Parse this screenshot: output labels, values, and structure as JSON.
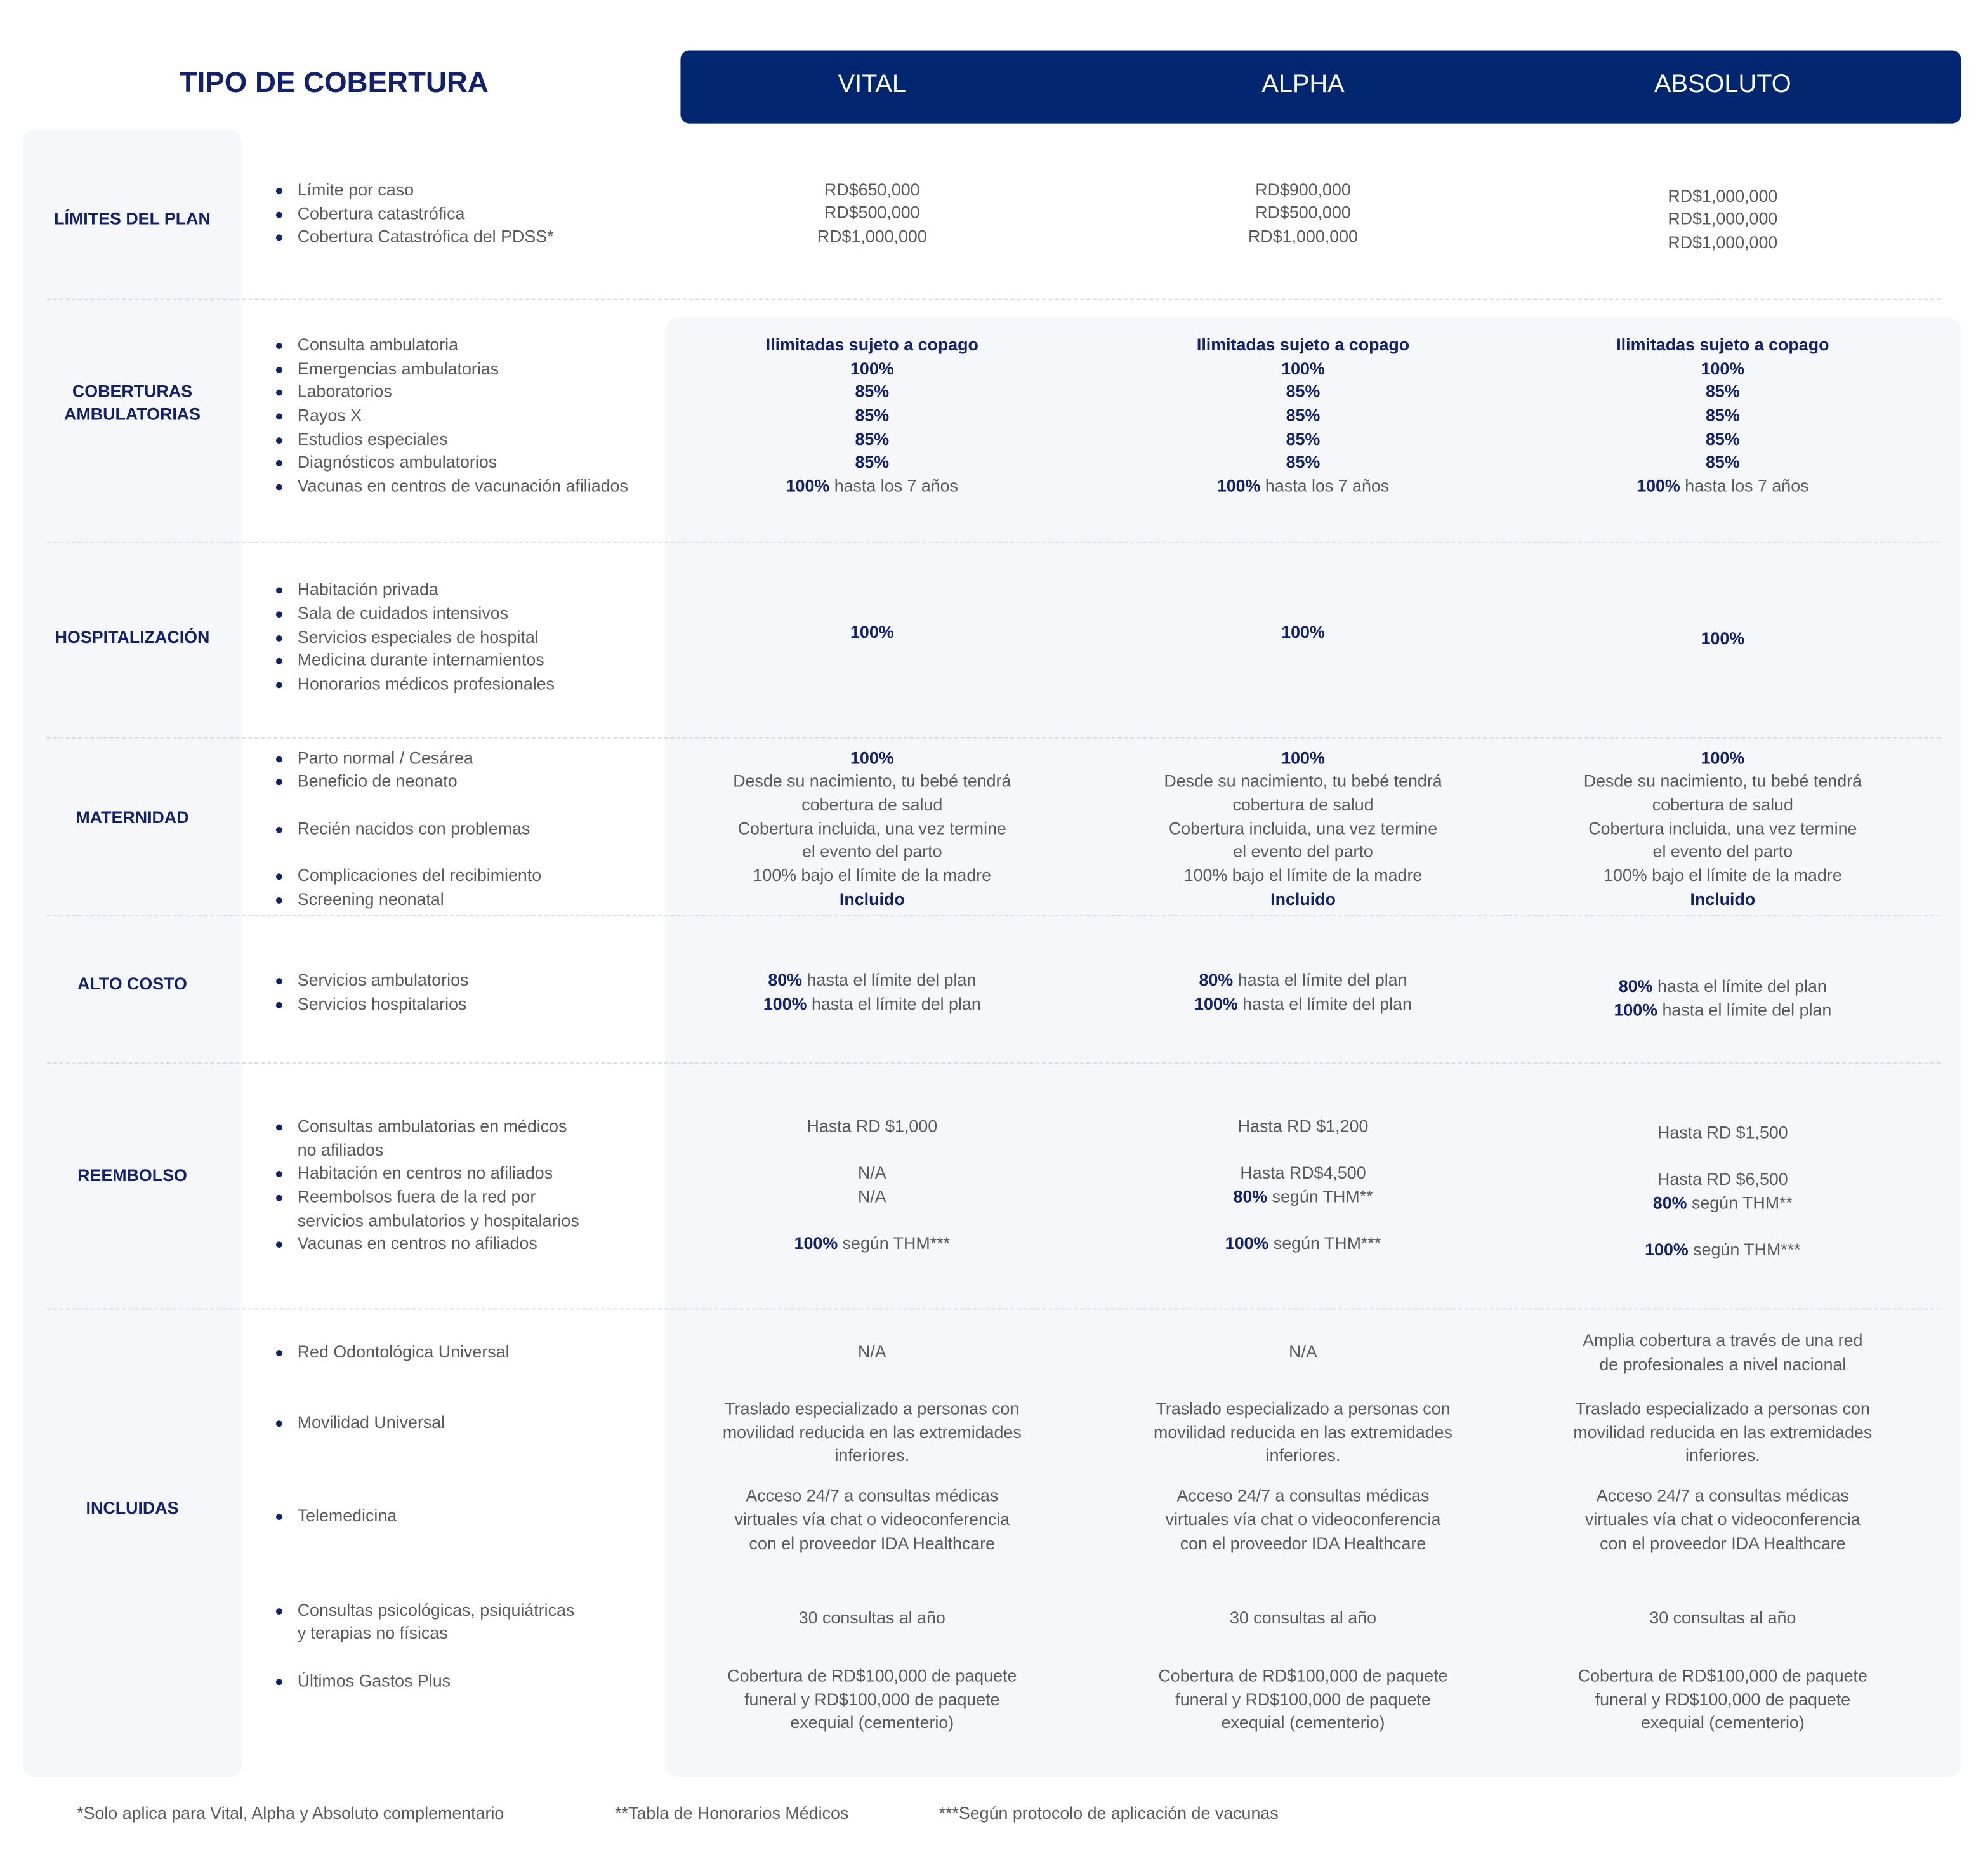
{
  "header": {
    "title": "TIPO DE COBERTURA",
    "plans": [
      "VITAL",
      "ALPHA",
      "ABSOLUTO"
    ]
  },
  "colors": {
    "primary": "#00266f",
    "heading": "#12216b",
    "panel": "#f6f7fb",
    "text": "#5a5a5a"
  },
  "sections": [
    {
      "label": [
        "LÍMITES DEL PLAN"
      ],
      "items": [
        [
          "Límite por caso"
        ],
        [
          "Cobertura catastrófica"
        ],
        [
          "Cobertura Catastrófica del PDSS*"
        ]
      ],
      "values": [
        [
          "RD$650,000",
          "RD$500,000",
          "RD$1,000,000"
        ],
        [
          "RD$900,000",
          "RD$500,000",
          "RD$1,000,000"
        ],
        [
          "RD$1,000,000",
          "RD$1,000,000",
          "RD$1,000,000"
        ]
      ]
    },
    {
      "label": [
        "COBERTURAS",
        "AMBULATORIAS"
      ],
      "items": [
        [
          "Consulta ambulatoria"
        ],
        [
          "Emergencias ambulatorias"
        ],
        [
          "Laboratorios"
        ],
        [
          "Rayos X"
        ],
        [
          "Estudios especiales"
        ],
        [
          "Diagnósticos ambulatorios"
        ],
        [
          "Vacunas en centros de vacunación afiliados"
        ]
      ],
      "values": [
        [
          {
            "bold": "Ilimitadas sujeto a copago"
          },
          {
            "bold": "100%"
          },
          {
            "bold": "85%"
          },
          {
            "bold": "85%"
          },
          {
            "bold": "85%"
          },
          {
            "bold": "85%"
          },
          {
            "bold": "100%",
            "text": "hasta los 7 años"
          }
        ],
        [
          {
            "bold": "Ilimitadas sujeto a copago"
          },
          {
            "bold": "100%"
          },
          {
            "bold": "85%"
          },
          {
            "bold": "85%"
          },
          {
            "bold": "85%"
          },
          {
            "bold": "85%"
          },
          {
            "bold": "100%",
            "text": "hasta los 7 años"
          }
        ],
        [
          {
            "bold": "Ilimitadas sujeto a copago"
          },
          {
            "bold": "100%"
          },
          {
            "bold": "85%"
          },
          {
            "bold": "85%"
          },
          {
            "bold": "85%"
          },
          {
            "bold": "85%"
          },
          {
            "bold": "100%",
            "text": "hasta los 7 años"
          }
        ]
      ]
    },
    {
      "label": [
        "HOSPITALIZACIÓN"
      ],
      "items": [
        [
          "Habitación privada"
        ],
        [
          "Sala de cuidados intensivos"
        ],
        [
          "Servicios especiales de hospital"
        ],
        [
          "Medicina durante internamientos"
        ],
        [
          "Honorarios médicos profesionales"
        ]
      ],
      "values": [
        [
          {
            "bold": "100%"
          }
        ],
        [
          {
            "bold": "100%"
          }
        ],
        [
          {
            "bold": "100%"
          }
        ]
      ]
    },
    {
      "label": [
        "MATERNIDAD"
      ],
      "items": [
        [
          "Parto normal / Cesárea"
        ],
        [
          "Beneficio de neonato"
        ],
        [
          "Recién nacidos con problemas"
        ],
        [
          "Complicaciones del recibimiento"
        ],
        [
          "Screening neonatal"
        ]
      ],
      "values": [
        [
          {
            "bold": "100%"
          },
          "Desde su nacimiento, tu bebé tendrá",
          "cobertura de salud",
          "Cobertura incluida, una vez termine",
          "el evento del parto",
          "100% bajo el límite de la madre",
          {
            "bold": "Incluido"
          }
        ],
        [
          {
            "bold": "100%"
          },
          "Desde su nacimiento, tu bebé tendrá",
          "cobertura de salud",
          "Cobertura incluida, una vez termine",
          "el evento del parto",
          "100% bajo el límite de la madre",
          {
            "bold": "Incluido"
          }
        ],
        [
          {
            "bold": "100%"
          },
          "Desde su nacimiento, tu bebé tendrá",
          "cobertura de salud",
          "Cobertura incluida, una vez termine",
          "el evento del parto",
          "100% bajo el límite de la madre",
          {
            "bold": "Incluido"
          }
        ]
      ]
    },
    {
      "label": [
        "ALTO COSTO"
      ],
      "items": [
        [
          "Servicios ambulatorios"
        ],
        [
          "Servicios hospitalarios"
        ]
      ],
      "values": [
        [
          {
            "bold": "80%",
            "text": "hasta el límite del plan"
          },
          {
            "bold": "100%",
            "text": "hasta el límite del plan"
          }
        ],
        [
          {
            "bold": "80%",
            "text": "hasta el límite del plan"
          },
          {
            "bold": "100%",
            "text": "hasta el límite del plan"
          }
        ],
        [
          {
            "bold": "80%",
            "text": "hasta el límite del plan"
          },
          {
            "bold": "100%",
            "text": "hasta el límite del plan"
          }
        ]
      ]
    },
    {
      "label": [
        "REEMBOLSO"
      ],
      "items": [
        [
          "Consultas ambulatorias en médicos",
          "no afiliados"
        ],
        [
          "Habitación en centros no afiliados"
        ],
        [
          "Reembolsos fuera de la red por",
          "servicios ambulatorios y hospitalarios"
        ],
        [
          "Vacunas en centros no afiliados"
        ]
      ],
      "values": [
        [
          "Hasta RD $1,000",
          "N/A",
          "N/A",
          {
            "bold": "100%",
            "text": "según THM***"
          }
        ],
        [
          "Hasta RD $1,200",
          "Hasta RD$4,500",
          {
            "bold": "80%",
            "text": "según THM**"
          },
          {
            "bold": "100%",
            "text": "según THM***"
          }
        ],
        [
          "Hasta RD $1,500",
          "Hasta RD $6,500",
          {
            "bold": "80%",
            "text": "según THM**"
          },
          {
            "bold": "100%",
            "text": "según THM***"
          }
        ]
      ]
    },
    {
      "label": [
        "INCLUIDAS"
      ],
      "items": [
        [
          "Red Odontológica Universal"
        ],
        [
          "Movilidad Universal"
        ],
        [
          "Telemedicina"
        ],
        [
          "Consultas psicológicas, psiquiátricas",
          "y terapias no físicas"
        ],
        [
          "Últimos Gastos Plus"
        ]
      ],
      "values": [
        [
          "N/A",
          "Traslado especializado a personas con",
          "movilidad reducida en las extremidades",
          "inferiores.",
          "Acceso 24/7 a consultas médicas",
          "virtuales vía chat o videoconferencia",
          "con el proveedor IDA Healthcare",
          "30 consultas al año",
          "Cobertura de RD$100,000 de paquete",
          "funeral y RD$100,000 de paquete",
          "exequial (cementerio)"
        ],
        [
          "N/A",
          "Traslado especializado a personas con",
          "movilidad reducida en las extremidades",
          "inferiores.",
          "Acceso 24/7 a consultas médicas",
          "virtuales vía chat o videoconferencia",
          "con el proveedor IDA Healthcare",
          "30 consultas al año",
          "Cobertura de RD$100,000 de paquete",
          "funeral y RD$100,000 de paquete",
          "exequial (cementerio)"
        ],
        [
          "Amplia cobertura a través de una red",
          "de profesionales a nivel nacional",
          "Traslado especializado a personas con",
          "movilidad reducida en las extremidades",
          "inferiores.",
          "Acceso 24/7 a consultas médicas",
          "virtuales vía chat o videoconferencia",
          "con el proveedor IDA Healthcare",
          "30 consultas al año",
          "Cobertura de RD$100,000 de paquete",
          "funeral y RD$100,000 de paquete",
          "exequial (cementerio)"
        ]
      ]
    }
  ],
  "footnotes": [
    "*Solo aplica para Vital, Alpha y Absoluto complementario",
    "**Tabla de Honorarios Médicos",
    "***Según protocolo de aplicación de vacunas"
  ]
}
